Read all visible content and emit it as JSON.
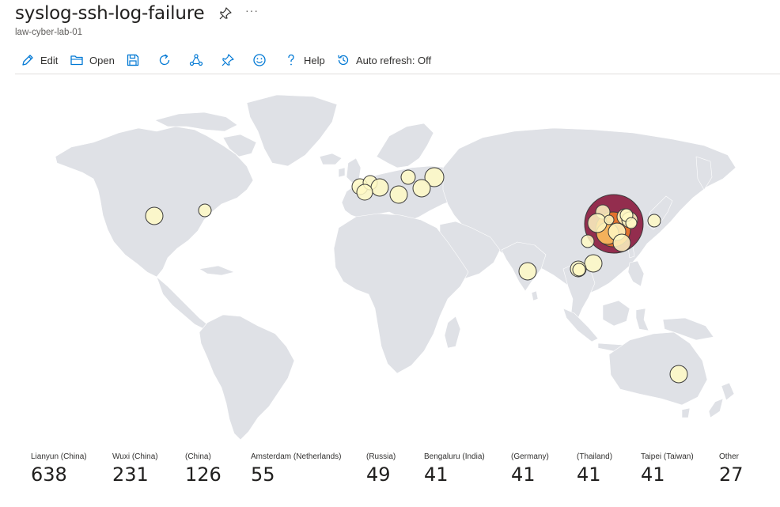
{
  "header": {
    "title": "syslog-ssh-log-failure",
    "subtitle": "law-cyber-lab-01",
    "more_label": "···"
  },
  "toolbar": {
    "edit_label": "Edit",
    "open_label": "Open",
    "help_label": "Help",
    "auto_refresh_label": "Auto refresh: Off"
  },
  "colors": {
    "accent": "#0078d4",
    "land": "#dfe1e6",
    "bubble_light": "#fff9c4",
    "bubble_mid": "#f4b45e",
    "bubble_orange": "#e8762b",
    "bubble_dark": "#8e2346",
    "bubble_stroke": "#3b3b3b"
  },
  "locations": [
    {
      "name": "Lianyun (China)",
      "count": 638
    },
    {
      "name": "Wuxi (China)",
      "count": 231
    },
    {
      "name": "(China)",
      "count": 126
    },
    {
      "name": "Amsterdam (Netherlands)",
      "count": 55
    },
    {
      "name": "(Russia)",
      "count": 49
    },
    {
      "name": "Bengaluru (India)",
      "count": 41
    },
    {
      "name": "(Germany)",
      "count": 41
    },
    {
      "name": "(Thailand)",
      "count": 41
    },
    {
      "name": "Taipei (Taiwan)",
      "count": 41
    },
    {
      "name": "Other",
      "count": 27
    }
  ]
}
